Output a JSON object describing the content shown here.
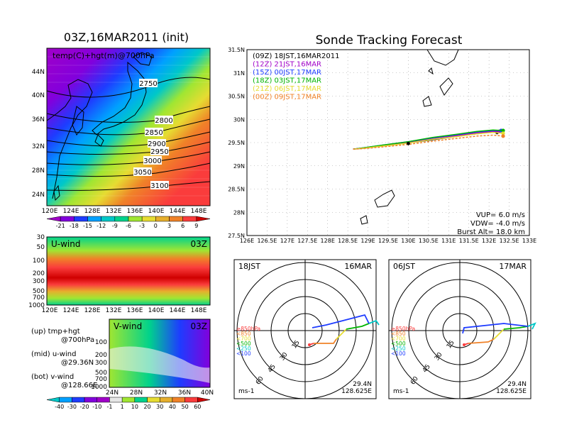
{
  "left": {
    "title": "03Z,16MAR2011 (init)",
    "map_label": "temp(C)+hgt(m)@700hPa",
    "lat_ticks": [
      "44N",
      "40N",
      "36N",
      "32N",
      "28N",
      "24N"
    ],
    "lon_ticks": [
      "120E",
      "124E",
      "128E",
      "132E",
      "136E",
      "140E",
      "144E",
      "148E"
    ],
    "contours": [
      "2750",
      "2800",
      "2850",
      "2900",
      "2950",
      "3000",
      "3050",
      "3100"
    ],
    "temp_colorbar": {
      "labels": [
        "-21",
        "-18",
        "-15",
        "-12",
        "-9",
        "-6",
        "-3",
        "0",
        "3",
        "6",
        "9"
      ],
      "colors": [
        "#a000c8",
        "#8200dc",
        "#1e3cff",
        "#00a0ff",
        "#00c8c8",
        "#00d28c",
        "#a0e632",
        "#e6dc32",
        "#e6af2d",
        "#f08228",
        "#fa3c3c",
        "#d00000"
      ]
    },
    "uwind": {
      "label": "U-wind",
      "time": "03Z",
      "p_ticks": [
        "30",
        "50",
        "100",
        "200",
        "300",
        "500",
        "700",
        "1000"
      ],
      "lon_ticks": [
        "120E",
        "124E",
        "128E",
        "132E",
        "136E",
        "140E",
        "144E",
        "148E"
      ]
    },
    "vwind": {
      "label": "V-wind",
      "time": "03Z",
      "p_ticks": [
        "100",
        "200",
        "300",
        "500",
        "700",
        "1000"
      ],
      "lat_ticks": [
        "24N",
        "28N",
        "32N",
        "36N",
        "40N"
      ]
    },
    "notes": [
      "(up) tmp+hgt",
      "@700hPa",
      "(mid) u-wind",
      "@29.36N",
      "(bot) v-wind",
      "@128.66E"
    ],
    "wind_colorbar": {
      "labels": [
        "-40",
        "-30",
        "-20",
        "-10",
        "-1",
        "1",
        "10",
        "20",
        "30",
        "40",
        "50",
        "60"
      ],
      "colors": [
        "#00c8c8",
        "#00a0ff",
        "#1e3cff",
        "#8200dc",
        "#a000c8",
        "#e6e6e6",
        "#a0e632",
        "#00d28c",
        "#e6dc32",
        "#e6af2d",
        "#f08228",
        "#fa3c3c",
        "#d00000"
      ]
    }
  },
  "right": {
    "title": "Sonde Tracking Forecast",
    "legend": [
      {
        "label": "(09Z)  18JST,16MAR2011",
        "color": "#000000"
      },
      {
        "label": "(12Z)  21JST,16MAR",
        "color": "#a000c8"
      },
      {
        "label": "(15Z)  00JST,17MAR",
        "color": "#1e3cff"
      },
      {
        "label": "(18Z)  03JST,17MAR",
        "color": "#00b400"
      },
      {
        "label": "(21Z)  06JST,17MAR",
        "color": "#e6dc32"
      },
      {
        "label": "(00Z)  09JST,17MAR",
        "color": "#f08228"
      }
    ],
    "info": [
      "VUP=  6.0  m/s",
      "VDW= -4.0  m/s",
      "Burst Alt= 18.0  km"
    ],
    "hodo1": {
      "left": "18JST",
      "right": "16MAR",
      "lat": "29.4N",
      "lon": "128.625E",
      "unit": "ms-1"
    },
    "hodo2": {
      "left": "06JST",
      "right": "17MAR",
      "lat": "29.4N",
      "lon": "128.625E",
      "unit": "ms-1"
    },
    "hodo_rings": [
      "15",
      "30",
      "45",
      "60"
    ],
    "hodo_levels": [
      {
        "label": "≥850hPa",
        "color": "#fa3c3c"
      },
      {
        "label": "<850",
        "color": "#f08228"
      },
      {
        "label": "<700",
        "color": "#e6dc32"
      },
      {
        "label": "<500",
        "color": "#00b400"
      },
      {
        "label": "<250",
        "color": "#00c8c8"
      },
      {
        "label": "<100",
        "color": "#1e3cff"
      }
    ]
  },
  "chart_data": {
    "type": "line",
    "title": "Sonde Tracking Forecast",
    "xlim": [
      126,
      133
    ],
    "ylim": [
      27.5,
      31.5
    ],
    "x_ticks": [
      "126E",
      "126.5E",
      "127E",
      "127.5E",
      "128E",
      "128.5E",
      "129E",
      "129.5E",
      "130E",
      "130.5E",
      "131E",
      "131.5E",
      "132E",
      "132.5E",
      "133E"
    ],
    "y_ticks": [
      "27.5N",
      "28N",
      "28.5N",
      "29N",
      "29.5N",
      "30N",
      "30.5N",
      "31N",
      "31.5N"
    ],
    "series": [
      {
        "name": "(09Z)",
        "color": "#000000",
        "lon": [
          128.63,
          128.9,
          129.4,
          129.9,
          130.5,
          131.1,
          131.6,
          132.0,
          132.2
        ],
        "lat": [
          29.36,
          29.38,
          29.43,
          29.48,
          29.55,
          29.62,
          29.68,
          29.72,
          29.72
        ]
      },
      {
        "name": "(12Z)",
        "color": "#a000c8",
        "lon": [
          128.63,
          128.9,
          129.4,
          130.0,
          130.6,
          131.2,
          131.7,
          132.1,
          132.25
        ],
        "lat": [
          29.36,
          29.39,
          29.44,
          29.5,
          29.58,
          29.65,
          29.71,
          29.74,
          29.74
        ]
      },
      {
        "name": "(15Z)",
        "color": "#1e3cff",
        "lon": [
          128.63,
          128.9,
          129.4,
          130.0,
          130.6,
          131.2,
          131.7,
          132.1,
          132.3
        ],
        "lat": [
          29.36,
          29.39,
          29.45,
          29.52,
          29.6,
          29.67,
          29.73,
          29.76,
          29.76
        ]
      },
      {
        "name": "(18Z)",
        "color": "#00b400",
        "lon": [
          128.63,
          128.9,
          129.4,
          130.0,
          130.6,
          131.2,
          131.7,
          132.1,
          132.35
        ],
        "lat": [
          29.36,
          29.39,
          29.45,
          29.52,
          29.61,
          29.68,
          29.74,
          29.77,
          29.76
        ]
      },
      {
        "name": "(21Z)",
        "color": "#e6dc32",
        "lon": [
          128.63,
          128.9,
          129.4,
          130.0,
          130.6,
          131.2,
          131.7,
          132.1,
          132.35
        ],
        "lat": [
          29.36,
          29.38,
          29.43,
          29.49,
          29.57,
          29.63,
          29.69,
          29.72,
          29.7
        ]
      },
      {
        "name": "(00Z)",
        "color": "#f08228",
        "lon": [
          128.63,
          128.9,
          129.4,
          130.0,
          130.6,
          131.2,
          131.7,
          132.1,
          132.35
        ],
        "lat": [
          29.36,
          29.37,
          29.41,
          29.46,
          29.53,
          29.59,
          29.64,
          29.66,
          29.64
        ]
      }
    ]
  }
}
